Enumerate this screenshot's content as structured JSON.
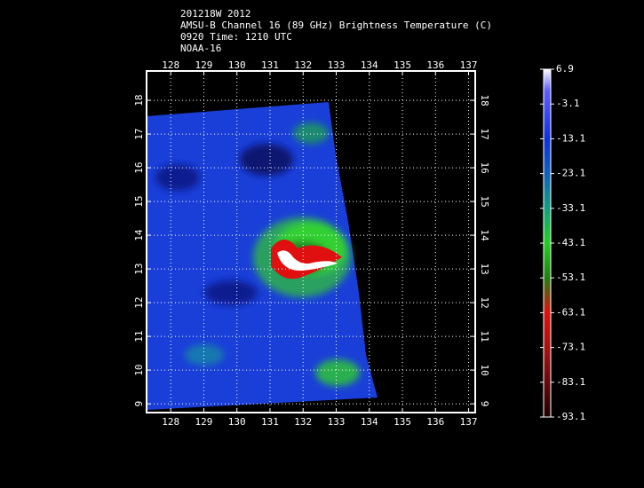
{
  "chart_data": {
    "type": "map",
    "title_lines": [
      "201218W 2012",
      "AMSU-B Channel 16 (89 GHz) Brightness Temperature (C)",
      "0920 Time: 1210 UTC",
      "NOAA-16"
    ],
    "xticks": [
      128,
      129,
      130,
      131,
      132,
      133,
      134,
      135,
      136,
      137
    ],
    "yticks": [
      9,
      10,
      11,
      12,
      13,
      14,
      15,
      16,
      17,
      18
    ],
    "xlim": [
      127.27,
      137.2
    ],
    "ylim": [
      8.74,
      18.87
    ],
    "grid": true,
    "colorbar_ticks": [
      6.9,
      -3.1,
      -13.1,
      -23.1,
      -33.1,
      -43.1,
      -53.1,
      -63.1,
      -73.1,
      -83.1,
      -93.1
    ],
    "colorbar_lim": [
      -93.1,
      6.9
    ]
  }
}
